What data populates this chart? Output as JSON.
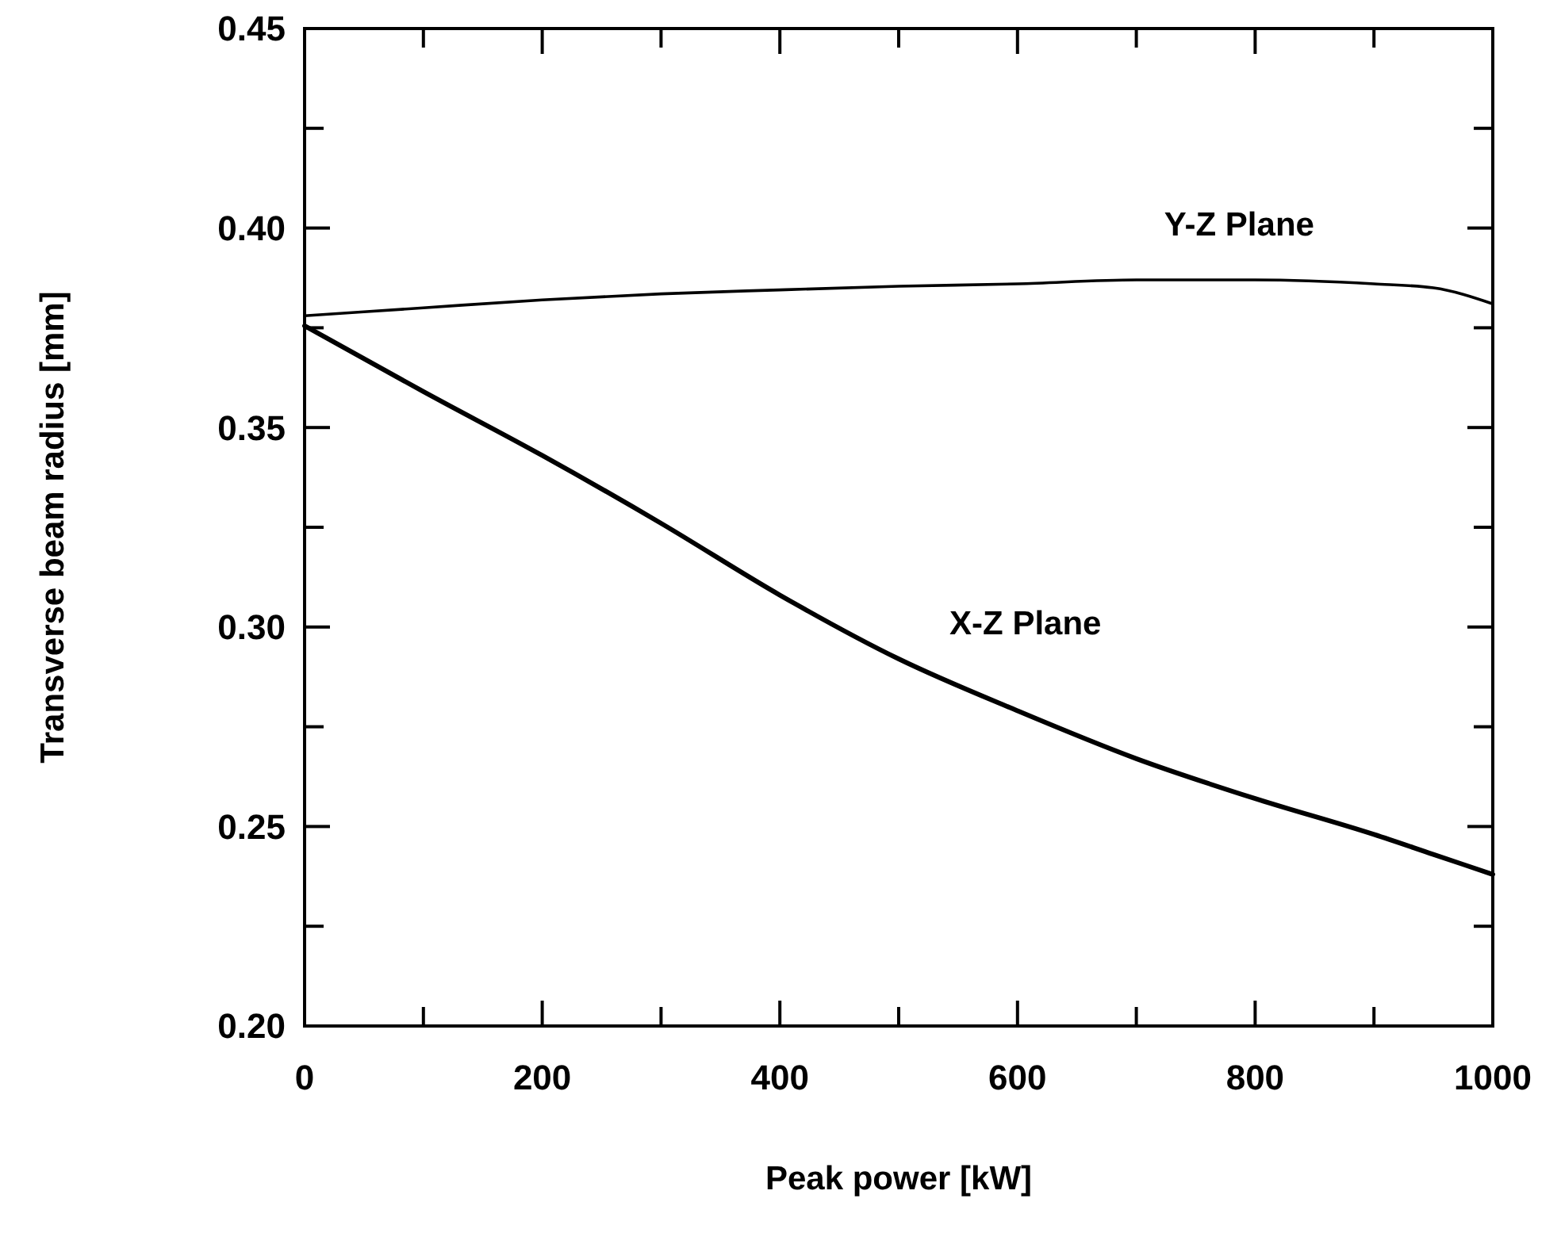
{
  "chart_data": {
    "type": "line",
    "xlabel": "Peak power [kW]",
    "ylabel": "Transverse beam radius [mm]",
    "x": [
      0,
      100,
      200,
      300,
      400,
      500,
      600,
      700,
      800,
      900,
      950,
      1000
    ],
    "series": [
      {
        "name": "Y-Z Plane",
        "color": "#000000",
        "values": [
          0.378,
          0.38,
          0.382,
          0.3835,
          0.3845,
          0.3854,
          0.386,
          0.387,
          0.387,
          0.386,
          0.385,
          0.381
        ]
      },
      {
        "name": "X-Z Plane",
        "color": "#000000",
        "values": [
          0.3755,
          0.359,
          0.343,
          0.326,
          0.308,
          0.292,
          0.279,
          0.267,
          0.257,
          0.248,
          0.243,
          0.238
        ]
      }
    ],
    "xlim": [
      0,
      1000
    ],
    "ylim": [
      0.2,
      0.45
    ],
    "xticks": [
      0,
      {
        "value": 100,
        "label": null
      },
      200,
      {
        "value": 300,
        "label": null
      },
      400,
      {
        "value": 500,
        "label": null
      },
      600,
      {
        "value": 700,
        "label": null
      },
      800,
      {
        "value": 900,
        "label": null
      },
      1000
    ],
    "yticks": [
      {
        "value": 0.2,
        "label": "0.20"
      },
      {
        "value": 0.225,
        "label": null
      },
      {
        "value": 0.25,
        "label": "0.25"
      },
      {
        "value": 0.275,
        "label": null
      },
      {
        "value": 0.3,
        "label": "0.30"
      },
      {
        "value": 0.325,
        "label": null
      },
      {
        "value": 0.35,
        "label": "0.35"
      },
      {
        "value": 0.375,
        "label": null
      },
      {
        "value": 0.4,
        "label": "0.40"
      },
      {
        "value": 0.425,
        "label": null
      },
      {
        "value": 0.45,
        "label": "0.45"
      }
    ],
    "grid": false,
    "marker": "none",
    "line_style": "solid"
  }
}
